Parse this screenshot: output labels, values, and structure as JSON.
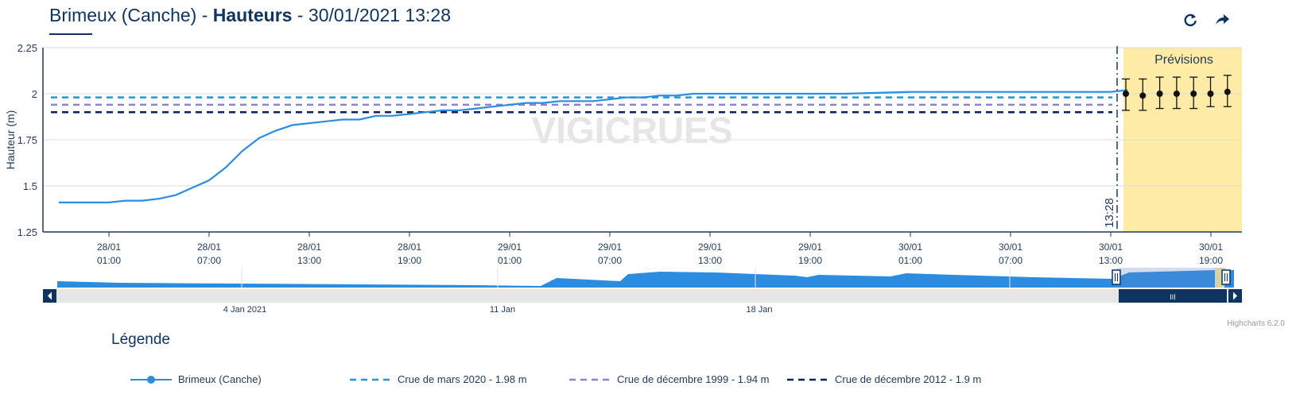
{
  "header": {
    "title_prefix": "Brimeux (Canche) - ",
    "title_bold": "Hauteurs",
    "title_suffix": " - 30/01/2021 13:28",
    "refresh_icon": "refresh-icon",
    "share_icon": "share-arrow-icon"
  },
  "chart_data": {
    "type": "line",
    "ylabel": "Hauteur (m)",
    "ylim": [
      1.25,
      2.25
    ],
    "yticks": [
      "2.25",
      "2",
      "1.75",
      "1.5",
      "1.25"
    ],
    "xticks": [
      {
        "date": "28/01",
        "time": "01:00"
      },
      {
        "date": "28/01",
        "time": "07:00"
      },
      {
        "date": "28/01",
        "time": "13:00"
      },
      {
        "date": "28/01",
        "time": "19:00"
      },
      {
        "date": "29/01",
        "time": "01:00"
      },
      {
        "date": "29/01",
        "time": "07:00"
      },
      {
        "date": "29/01",
        "time": "13:00"
      },
      {
        "date": "29/01",
        "time": "19:00"
      },
      {
        "date": "30/01",
        "time": "01:00"
      },
      {
        "date": "30/01",
        "time": "07:00"
      },
      {
        "date": "30/01",
        "time": "13:00"
      },
      {
        "date": "30/01",
        "time": "19:00"
      }
    ],
    "series": [
      {
        "name": "Brimeux (Canche)",
        "color": "#2b8de0",
        "x_hours": [
          -3,
          0,
          1,
          2,
          3,
          4,
          5,
          6,
          7,
          8,
          9,
          10,
          11,
          12,
          13,
          14,
          15,
          16,
          17,
          18,
          19,
          20,
          21,
          22,
          23,
          24,
          25,
          26,
          27,
          28,
          29,
          30,
          31,
          32,
          33,
          34,
          35,
          36,
          40,
          44,
          48,
          52,
          56,
          60,
          61
        ],
        "values": [
          1.41,
          1.41,
          1.42,
          1.42,
          1.43,
          1.45,
          1.49,
          1.53,
          1.6,
          1.69,
          1.76,
          1.8,
          1.83,
          1.84,
          1.85,
          1.86,
          1.86,
          1.88,
          1.88,
          1.89,
          1.9,
          1.91,
          1.91,
          1.92,
          1.93,
          1.94,
          1.95,
          1.95,
          1.96,
          1.96,
          1.96,
          1.97,
          1.98,
          1.98,
          1.99,
          1.99,
          2.0,
          2.0,
          2.0,
          2.0,
          2.01,
          2.01,
          2.01,
          2.01,
          2.02
        ]
      },
      {
        "name": "Crue de mars 2020 - 1.98 m",
        "color": "#1e98d6",
        "value": 1.98,
        "dash": "8,6"
      },
      {
        "name": "Crue de décembre 1999 - 1.94 m",
        "color": "#8a82d4",
        "value": 1.94,
        "dash": "8,6"
      },
      {
        "name": "Crue de décembre 2012 - 1.9 m",
        "color": "#0b1f5c",
        "value": 1.9,
        "dash": "8,6"
      }
    ],
    "forecast": {
      "label": "Prévisions",
      "now_label": "13:28",
      "points": [
        {
          "value": 2.0,
          "low": 1.91,
          "high": 2.08
        },
        {
          "value": 1.99,
          "low": 1.91,
          "high": 2.08
        },
        {
          "value": 2.0,
          "low": 1.92,
          "high": 2.09
        },
        {
          "value": 2.0,
          "low": 1.92,
          "high": 2.09
        },
        {
          "value": 2.0,
          "low": 1.92,
          "high": 2.09
        },
        {
          "value": 2.0,
          "low": 1.93,
          "high": 2.09
        },
        {
          "value": 2.01,
          "low": 1.93,
          "high": 2.1
        }
      ]
    },
    "watermark": "VIGICRUES",
    "grid": true
  },
  "navigator": {
    "labels": [
      "4 Jan 2021",
      "11 Jan",
      "18 Jan"
    ],
    "scrollbar_grip": "III"
  },
  "legend": {
    "title": "Légende",
    "items": [
      "Brimeux (Canche)",
      "Crue de mars 2020 - 1.98 m",
      "Crue de décembre 1999 - 1.94 m",
      "Crue de décembre 2012 - 1.9 m"
    ]
  },
  "credits": "Highcharts 6.2.0"
}
